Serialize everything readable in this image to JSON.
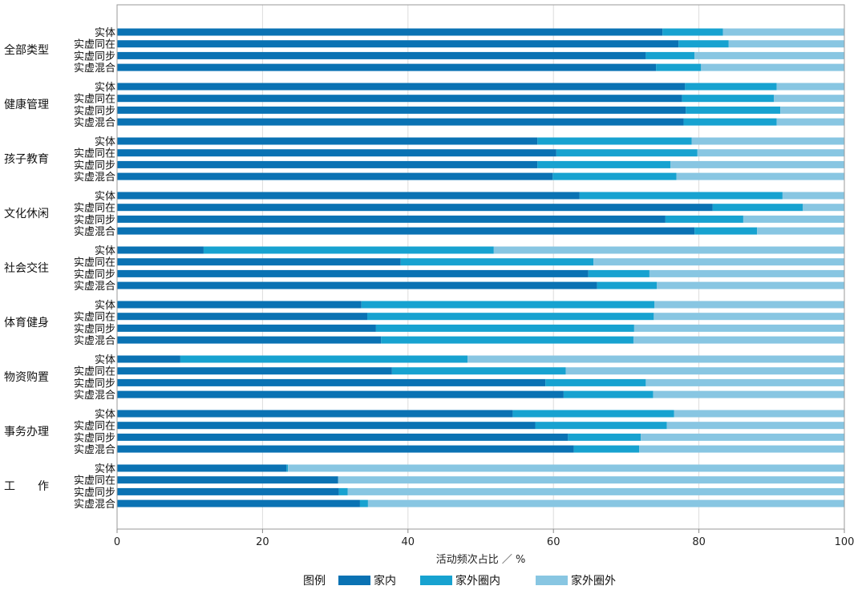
{
  "chart_data": {
    "type": "bar",
    "orientation": "horizontal",
    "stacked": true,
    "xlabel": "活动频次占比 ／ %",
    "xlim": [
      0,
      100
    ],
    "xticks": [
      0,
      20,
      40,
      60,
      80,
      100
    ],
    "legend_title": "图例",
    "legend_position": "bottom",
    "grid": "vertical",
    "series": [
      {
        "name": "家内",
        "color": "#0a72b3"
      },
      {
        "name": "家外圈内",
        "color": "#17a2d0"
      },
      {
        "name": "家外圈外",
        "color": "#88c6e2"
      }
    ],
    "groups": [
      {
        "label": "全部类型",
        "rows": [
          {
            "label": "实体",
            "values": [
              75.0,
              8.3,
              16.7
            ]
          },
          {
            "label": "实虚同在",
            "values": [
              77.2,
              6.9,
              15.9
            ]
          },
          {
            "label": "实虚同步",
            "values": [
              72.7,
              6.7,
              20.6
            ]
          },
          {
            "label": "实虚混合",
            "values": [
              74.1,
              6.2,
              19.7
            ]
          }
        ]
      },
      {
        "label": "健康管理",
        "rows": [
          {
            "label": "实体",
            "values": [
              78.1,
              12.6,
              9.3
            ]
          },
          {
            "label": "实虚同在",
            "values": [
              77.7,
              12.6,
              9.7
            ]
          },
          {
            "label": "实虚同步",
            "values": [
              78.2,
              13.0,
              8.8
            ]
          },
          {
            "label": "实虚混合",
            "values": [
              77.9,
              12.8,
              9.3
            ]
          }
        ]
      },
      {
        "label": "孩子教育",
        "rows": [
          {
            "label": "实体",
            "values": [
              57.8,
              21.2,
              21.0
            ]
          },
          {
            "label": "实虚同在",
            "values": [
              60.4,
              19.4,
              20.2
            ]
          },
          {
            "label": "实虚同步",
            "values": [
              57.8,
              18.3,
              23.9
            ]
          },
          {
            "label": "实虚混合",
            "values": [
              59.9,
              17.0,
              23.1
            ]
          }
        ]
      },
      {
        "label": "文化休闲",
        "rows": [
          {
            "label": "实体",
            "values": [
              63.6,
              27.9,
              8.5
            ]
          },
          {
            "label": "实虚同在",
            "values": [
              81.9,
              12.4,
              5.7
            ]
          },
          {
            "label": "实虚同步",
            "values": [
              75.4,
              10.7,
              13.9
            ]
          },
          {
            "label": "实虚混合",
            "values": [
              79.4,
              8.6,
              12.0
            ]
          }
        ]
      },
      {
        "label": "社会交往",
        "rows": [
          {
            "label": "实体",
            "values": [
              11.9,
              39.9,
              48.2
            ]
          },
          {
            "label": "实虚同在",
            "values": [
              39.0,
              26.5,
              34.5
            ]
          },
          {
            "label": "实虚同步",
            "values": [
              64.8,
              8.4,
              26.8
            ]
          },
          {
            "label": "实虚混合",
            "values": [
              66.0,
              8.2,
              25.8
            ]
          }
        ]
      },
      {
        "label": "体育健身",
        "rows": [
          {
            "label": "实体",
            "values": [
              33.6,
              40.3,
              26.1
            ]
          },
          {
            "label": "实虚同在",
            "values": [
              34.4,
              39.4,
              26.2
            ]
          },
          {
            "label": "实虚同步",
            "values": [
              35.6,
              35.5,
              28.9
            ]
          },
          {
            "label": "实虚混合",
            "values": [
              36.3,
              34.7,
              29.0
            ]
          }
        ]
      },
      {
        "label": "物资购置",
        "rows": [
          {
            "label": "实体",
            "values": [
              8.7,
              39.5,
              51.8
            ]
          },
          {
            "label": "实虚同在",
            "values": [
              37.8,
              23.9,
              38.3
            ]
          },
          {
            "label": "实虚同步",
            "values": [
              58.9,
              13.8,
              27.3
            ]
          },
          {
            "label": "实虚混合",
            "values": [
              61.4,
              12.3,
              26.3
            ]
          }
        ]
      },
      {
        "label": "事务办理",
        "rows": [
          {
            "label": "实体",
            "values": [
              54.4,
              22.2,
              23.4
            ]
          },
          {
            "label": "实虚同在",
            "values": [
              57.5,
              18.1,
              24.4
            ]
          },
          {
            "label": "实虚同步",
            "values": [
              62.0,
              10.0,
              28.0
            ]
          },
          {
            "label": "实虚混合",
            "values": [
              62.8,
              9.0,
              28.2
            ]
          }
        ]
      },
      {
        "label": "工　　作",
        "rows": [
          {
            "label": "实体",
            "values": [
              23.3,
              0.2,
              76.5
            ]
          },
          {
            "label": "实虚同在",
            "values": [
              30.4,
              0.0,
              69.6
            ]
          },
          {
            "label": "实虚同步",
            "values": [
              30.5,
              1.2,
              68.3
            ]
          },
          {
            "label": "实虚混合",
            "values": [
              33.4,
              1.1,
              65.5
            ]
          }
        ]
      }
    ]
  }
}
